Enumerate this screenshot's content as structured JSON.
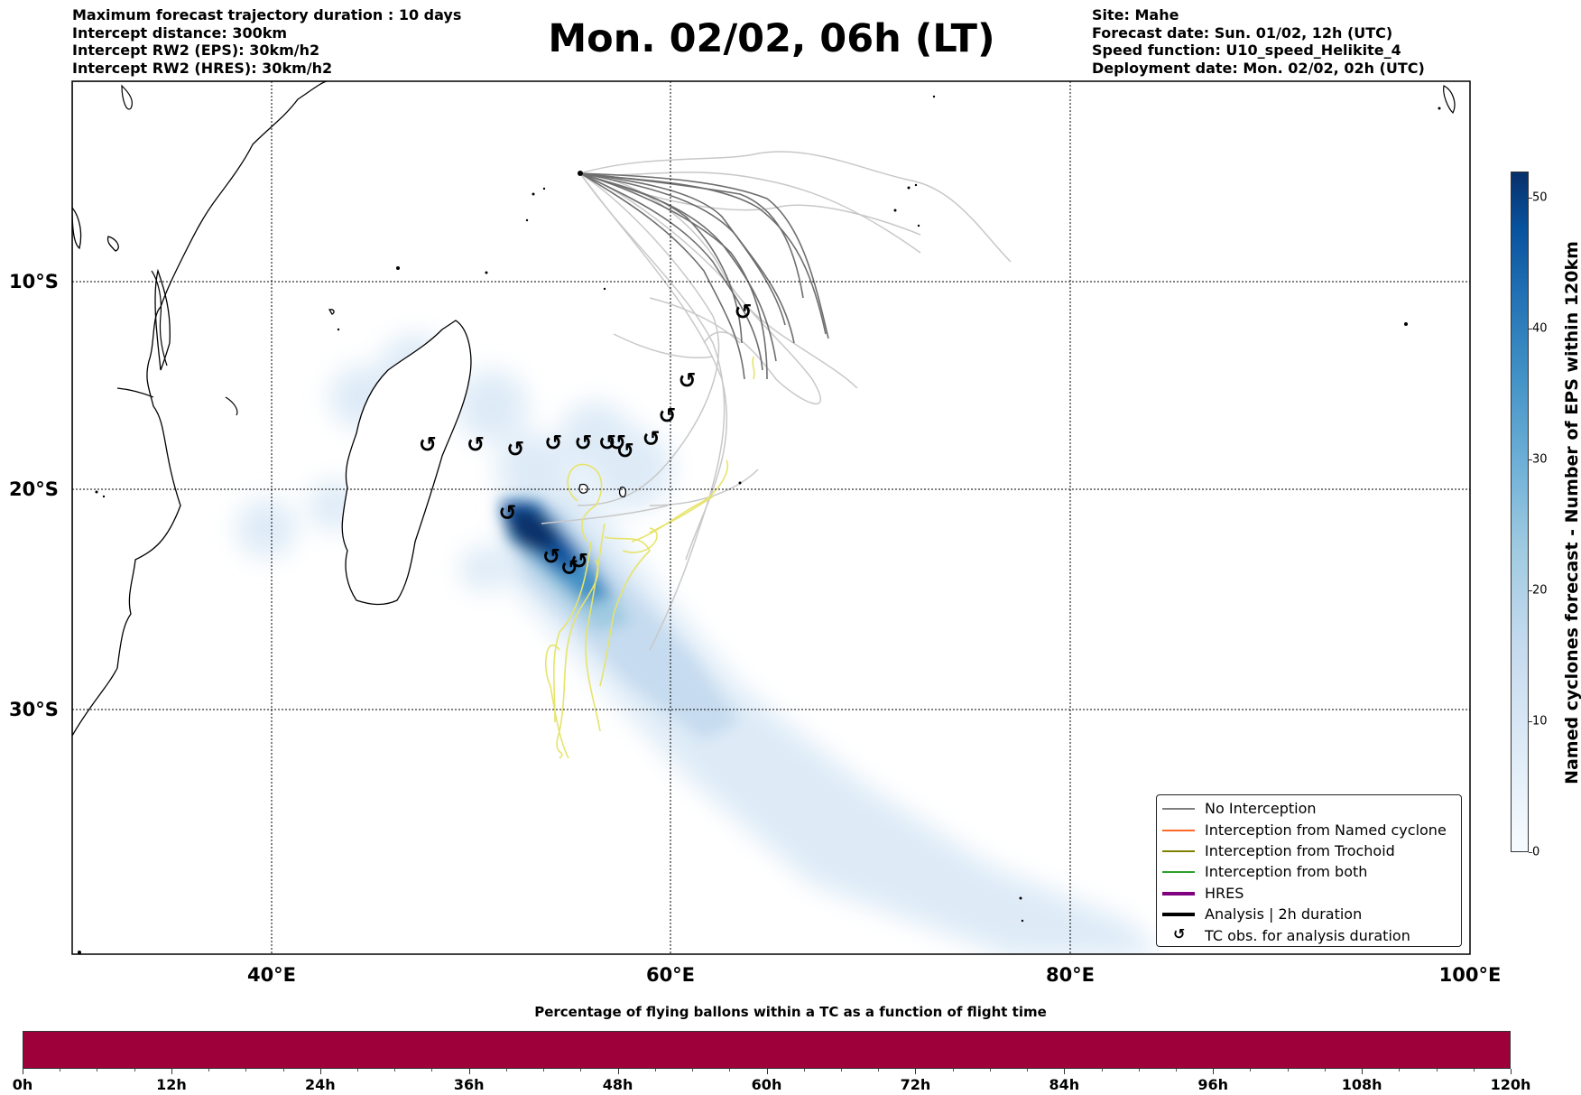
{
  "header_left": [
    "Maximum forecast trajectory duration : 10 days",
    "Intercept distance: 300km",
    "Intercept RW2 (EPS):  30km/h2",
    "Intercept RW2 (HRES): 30km/h2"
  ],
  "title": "Mon. 02/02, 06h (LT)",
  "header_right": [
    "Site: Mahe",
    "Forecast date: Sun. 01/02, 12h (UTC)",
    "Speed function: U10_speed_Helikite_4",
    "Deployment date: Mon. 02/02, 02h (UTC)"
  ],
  "map": {
    "lon_ticks": [
      "40°E",
      "60°E",
      "80°E",
      "100°E"
    ],
    "lat_ticks": [
      "10°S",
      "20°S",
      "30°S"
    ],
    "lon_range": [
      30,
      100
    ],
    "lat_range": [
      -42,
      0
    ],
    "site": {
      "name": "Mahe",
      "lon": 55.5,
      "lat": -4.6
    },
    "tc_obs_symbol": "↺",
    "tc_obs_positions": [
      {
        "lon": 63.6,
        "lat": -11.5
      },
      {
        "lon": 60.8,
        "lat": -14.8
      },
      {
        "lon": 59.8,
        "lat": -16.5
      },
      {
        "lon": 59.0,
        "lat": -17.6
      },
      {
        "lon": 57.7,
        "lat": -18.2
      },
      {
        "lon": 57.3,
        "lat": -17.8
      },
      {
        "lon": 56.8,
        "lat": -17.8
      },
      {
        "lon": 55.6,
        "lat": -17.8
      },
      {
        "lon": 54.1,
        "lat": -17.8
      },
      {
        "lon": 52.2,
        "lat": -18.1
      },
      {
        "lon": 50.2,
        "lat": -17.9
      },
      {
        "lon": 47.8,
        "lat": -17.9
      },
      {
        "lon": 51.8,
        "lat": -21.1
      },
      {
        "lon": 54.0,
        "lat": -23.1
      },
      {
        "lon": 54.9,
        "lat": -23.6
      },
      {
        "lon": 55.4,
        "lat": -23.3
      }
    ]
  },
  "legend": {
    "entries": [
      {
        "label": "No Interception",
        "color": "#7f7f7f",
        "style": "line-thin"
      },
      {
        "label": "Interception from Named cyclone",
        "color": "#ff6a2b",
        "style": "line-thin"
      },
      {
        "label": "Interception from Trochoid",
        "color": "#808000",
        "style": "line-thin"
      },
      {
        "label": "Interception from both",
        "color": "#2ca02c",
        "style": "line-thin"
      },
      {
        "label": "HRES",
        "color": "#800080",
        "style": "line-thick"
      },
      {
        "label": "Analysis | 2h duration",
        "color": "#000000",
        "style": "line-thick"
      },
      {
        "label": "TC obs. for analysis duration",
        "color": "#000000",
        "style": "symbol"
      }
    ]
  },
  "colorbar_vertical": {
    "label": "Named cyclones forecast - Number of EPS within 120km",
    "ticks": [
      "0",
      "10",
      "20",
      "30",
      "40",
      "50"
    ],
    "range": [
      0,
      52
    ],
    "colormap": "Blues"
  },
  "colorbar_horizontal": {
    "title": "Percentage of flying ballons within a TC as a function of flight time",
    "ticks": [
      "0h",
      "12h",
      "24h",
      "36h",
      "48h",
      "60h",
      "72h",
      "84h",
      "96h",
      "108h",
      "120h"
    ],
    "fill_color": "#9e003a"
  }
}
